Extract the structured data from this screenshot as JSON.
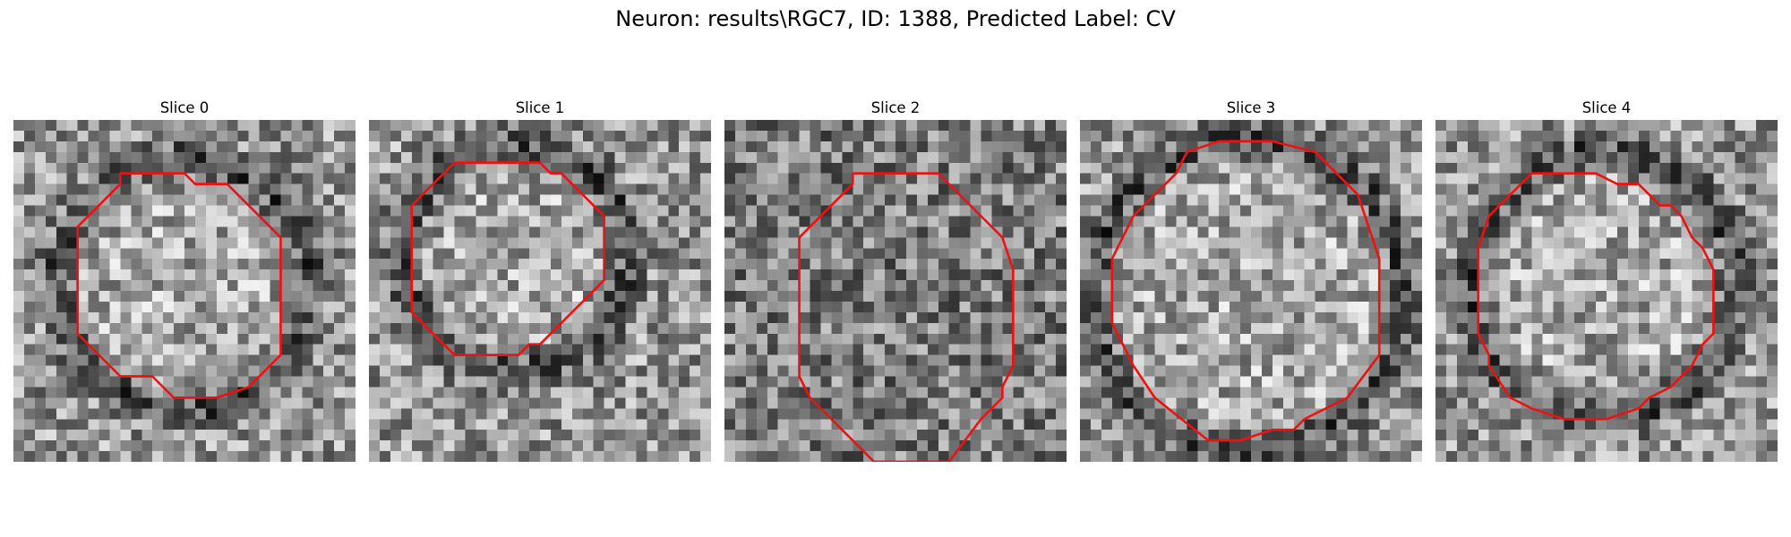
{
  "figure": {
    "title": "Neuron: results\\RGC7, ID: 1388, Predicted Label: CV"
  },
  "panels": [
    {
      "title": "Slice 0",
      "seed": 11,
      "dark_ring": true,
      "contour": [
        [
          6,
          10
        ],
        [
          10,
          6
        ],
        [
          10,
          5
        ],
        [
          16,
          5
        ],
        [
          17,
          6
        ],
        [
          20,
          6
        ],
        [
          25,
          11
        ],
        [
          25,
          14
        ],
        [
          25,
          22
        ],
        [
          22,
          25
        ],
        [
          19,
          26
        ],
        [
          15,
          26
        ],
        [
          13,
          24
        ],
        [
          10,
          24
        ],
        [
          6,
          20
        ]
      ]
    },
    {
      "title": "Slice 1",
      "seed": 23,
      "dark_ring": true,
      "contour": [
        [
          4,
          8
        ],
        [
          8,
          4
        ],
        [
          16,
          4
        ],
        [
          17,
          5
        ],
        [
          18,
          5
        ],
        [
          22,
          9
        ],
        [
          22,
          15
        ],
        [
          16,
          21
        ],
        [
          15,
          21
        ],
        [
          14,
          22
        ],
        [
          8,
          22
        ],
        [
          4,
          18
        ]
      ]
    },
    {
      "title": "Slice 2",
      "seed": 37,
      "dark_ring": false,
      "contour": [
        [
          7,
          11
        ],
        [
          11,
          7
        ],
        [
          12,
          6
        ],
        [
          12,
          5
        ],
        [
          20,
          5
        ],
        [
          25,
          10
        ],
        [
          26,
          11
        ],
        [
          27,
          14
        ],
        [
          27,
          16
        ],
        [
          27,
          23
        ],
        [
          26,
          25
        ],
        [
          26,
          26
        ],
        [
          25,
          27
        ],
        [
          24,
          28
        ],
        [
          21,
          32
        ],
        [
          14,
          32
        ],
        [
          11,
          29
        ],
        [
          10,
          28
        ],
        [
          8,
          26
        ],
        [
          7,
          24
        ]
      ]
    },
    {
      "title": "Slice 3",
      "seed": 53,
      "dark_ring": true,
      "contour": [
        [
          3,
          13
        ],
        [
          5,
          9
        ],
        [
          9,
          5
        ],
        [
          10,
          3
        ],
        [
          13,
          2
        ],
        [
          18,
          2
        ],
        [
          22,
          3
        ],
        [
          26,
          7
        ],
        [
          27,
          10
        ],
        [
          28,
          13
        ],
        [
          28,
          22
        ],
        [
          25,
          26
        ],
        [
          21,
          28
        ],
        [
          20,
          29
        ],
        [
          18,
          29
        ],
        [
          15,
          30
        ],
        [
          12,
          30
        ],
        [
          7,
          26
        ],
        [
          5,
          23
        ],
        [
          3,
          19
        ]
      ]
    },
    {
      "title": "Slice 4",
      "seed": 71,
      "dark_ring": true,
      "contour": [
        [
          4,
          12
        ],
        [
          5,
          9
        ],
        [
          7,
          7
        ],
        [
          8,
          6
        ],
        [
          9,
          5
        ],
        [
          11,
          5
        ],
        [
          13,
          5
        ],
        [
          15,
          5
        ],
        [
          17,
          6
        ],
        [
          19,
          6
        ],
        [
          20,
          7
        ],
        [
          21,
          8
        ],
        [
          22,
          8
        ],
        [
          23,
          9
        ],
        [
          24,
          11
        ],
        [
          25,
          12
        ],
        [
          26,
          14
        ],
        [
          26,
          15
        ],
        [
          26,
          19
        ],
        [
          26,
          20
        ],
        [
          25,
          21
        ],
        [
          24,
          23
        ],
        [
          23,
          24
        ],
        [
          22,
          25
        ],
        [
          20,
          26
        ],
        [
          19,
          27
        ],
        [
          16,
          28
        ],
        [
          12,
          28
        ],
        [
          9,
          27
        ],
        [
          7,
          26
        ],
        [
          5,
          23
        ],
        [
          5,
          22
        ],
        [
          4,
          20
        ],
        [
          4,
          17
        ],
        [
          4,
          15
        ]
      ]
    }
  ]
}
